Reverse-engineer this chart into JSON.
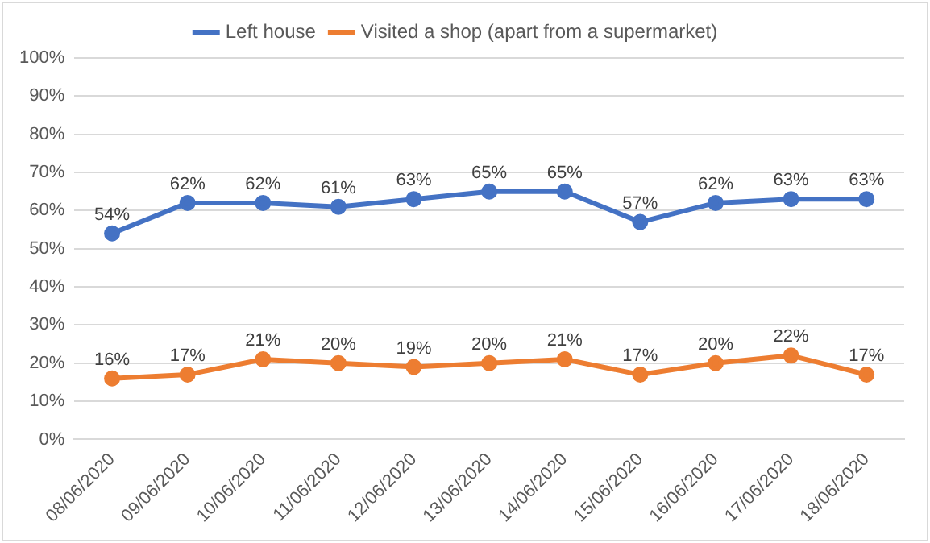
{
  "chart_data": {
    "type": "line",
    "categories": [
      "08/06/2020",
      "09/06/2020",
      "10/06/2020",
      "11/06/2020",
      "12/06/2020",
      "13/06/2020",
      "14/06/2020",
      "15/06/2020",
      "16/06/2020",
      "17/06/2020",
      "18/06/2020"
    ],
    "series": [
      {
        "name": "Left house",
        "color": "#4472c4",
        "values": [
          54,
          62,
          62,
          61,
          63,
          65,
          65,
          57,
          62,
          63,
          63
        ],
        "value_labels": [
          "54%",
          "62%",
          "62%",
          "61%",
          "63%",
          "65%",
          "65%",
          "57%",
          "62%",
          "63%",
          "63%"
        ]
      },
      {
        "name": "Visited a shop (apart from a supermarket)",
        "color": "#ed7d31",
        "values": [
          16,
          17,
          21,
          20,
          19,
          20,
          21,
          17,
          20,
          22,
          17
        ],
        "value_labels": [
          "16%",
          "17%",
          "21%",
          "20%",
          "19%",
          "20%",
          "21%",
          "17%",
          "20%",
          "22%",
          "17%"
        ]
      }
    ],
    "ylim": [
      0,
      100
    ],
    "yticks": [
      {
        "value": 0,
        "label": "0%"
      },
      {
        "value": 10,
        "label": "10%"
      },
      {
        "value": 20,
        "label": "20%"
      },
      {
        "value": 30,
        "label": "30%"
      },
      {
        "value": 40,
        "label": "40%"
      },
      {
        "value": 50,
        "label": "50%"
      },
      {
        "value": 60,
        "label": "60%"
      },
      {
        "value": 70,
        "label": "70%"
      },
      {
        "value": 80,
        "label": "80%"
      },
      {
        "value": 90,
        "label": "90%"
      },
      {
        "value": 100,
        "label": "100%"
      }
    ],
    "grid": "y",
    "legend": "top",
    "marker": "circle",
    "line_style": "solid"
  }
}
